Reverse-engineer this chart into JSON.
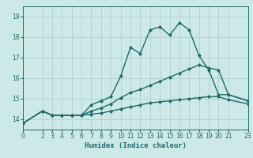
{
  "xlabel": "Humidex (Indice chaleur)",
  "xlim": [
    0,
    23
  ],
  "ylim": [
    13.5,
    19.5
  ],
  "yticks": [
    14,
    15,
    16,
    17,
    18,
    19
  ],
  "xticks": [
    0,
    2,
    3,
    4,
    5,
    6,
    7,
    8,
    9,
    10,
    11,
    12,
    13,
    14,
    15,
    16,
    17,
    18,
    19,
    20,
    21,
    23
  ],
  "bg_color": "#cce9e8",
  "grid_color": "#b0cfce",
  "line_color": "#1a6b6b",
  "line_width": 1.0,
  "marker": "D",
  "marker_size": 2.0,
  "series": [
    {
      "x": [
        0,
        2,
        3,
        4,
        5,
        6,
        7,
        8,
        9,
        10,
        11,
        12,
        13,
        14,
        15,
        16,
        17,
        18,
        19,
        20,
        21,
        23
      ],
      "y": [
        13.8,
        14.4,
        14.2,
        14.2,
        14.2,
        14.2,
        14.7,
        14.9,
        15.1,
        16.1,
        17.5,
        17.2,
        18.35,
        18.5,
        18.1,
        18.7,
        18.35,
        17.1,
        16.4,
        15.2,
        15.2,
        14.9
      ]
    },
    {
      "x": [
        0,
        2,
        3,
        4,
        5,
        6,
        7,
        8,
        9,
        10,
        11,
        12,
        13,
        14,
        15,
        16,
        17,
        18,
        19,
        20,
        21,
        23
      ],
      "y": [
        13.8,
        14.4,
        14.2,
        14.2,
        14.2,
        14.2,
        14.4,
        14.55,
        14.75,
        15.05,
        15.3,
        15.45,
        15.65,
        15.85,
        16.05,
        16.25,
        16.45,
        16.65,
        16.5,
        16.4,
        15.2,
        14.9
      ]
    },
    {
      "x": [
        0,
        2,
        3,
        4,
        5,
        6,
        7,
        8,
        9,
        10,
        11,
        12,
        13,
        14,
        15,
        16,
        17,
        18,
        19,
        20,
        21,
        23
      ],
      "y": [
        13.8,
        14.4,
        14.2,
        14.2,
        14.2,
        14.2,
        14.25,
        14.3,
        14.4,
        14.5,
        14.6,
        14.7,
        14.8,
        14.85,
        14.9,
        14.95,
        15.0,
        15.05,
        15.1,
        15.1,
        14.95,
        14.75
      ]
    }
  ]
}
